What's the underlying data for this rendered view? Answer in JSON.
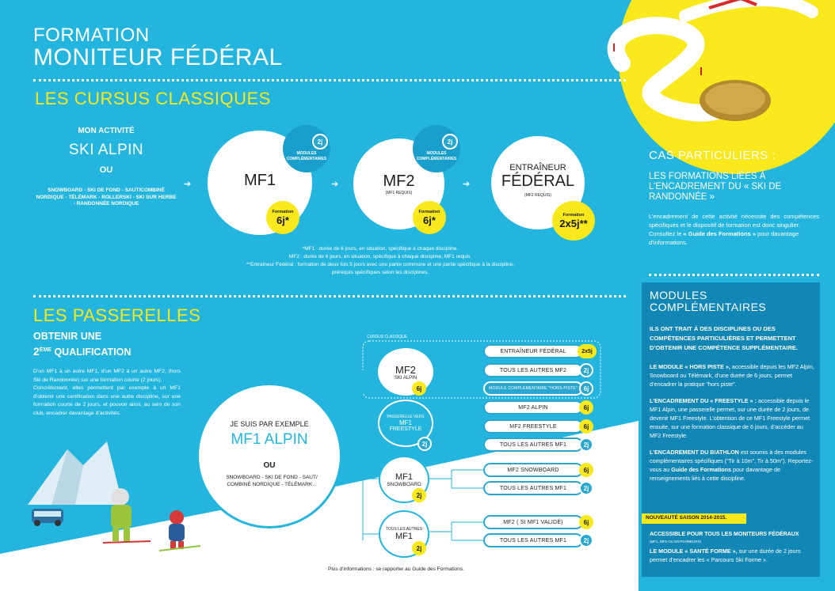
{
  "header": {
    "title_line1": "FORMATION",
    "title_line2": "MONITEUR FÉDÉRAL"
  },
  "cursus": {
    "heading": "LES CURSUS CLASSIQUES",
    "activity_label": "MON ACTIVITÉ",
    "activity": "SKI ALPIN",
    "ou": "OU",
    "others": "SNOWBOARD - SKI DE FOND - SAUT/COMBINÉ NORDIQUE - TÉLÉMARK - ROLLERSKI - SKI SUR HERBE - RANDONNÉE NORDIQUE",
    "arrow": "➔",
    "mf1": {
      "title": "MF1",
      "modules_badge": "2j",
      "modules_label": "MODULES COMPLÉMENTAIRES",
      "formation_label": "Formation",
      "formation_value": "6j*"
    },
    "mf2": {
      "title": "MF2",
      "sub": "(MF1 REQUIS)",
      "modules_badge": "2j",
      "modules_label": "MODULES COMPLÉMENTAIRES",
      "formation_label": "Formation",
      "formation_value": "6j*"
    },
    "ef": {
      "title_small": "ENTRAÎNEUR",
      "title": "FÉDÉRAL",
      "sub": "(MF2 REQUIS)",
      "formation_label": "Formation",
      "formation_value": "2x5j**"
    },
    "notes": [
      "*MF1 : durée de 6 jours, en situation, spécifique à chaque discipline.",
      "MF2 : durée de 6 jours, en situation, spécifique à chaque discipline, MF1 requis.",
      "**Entraîneur Fédéral : formation de deux fois 5 jours avec une partie commune et une partie spécifique à la discipline,",
      "prérequis spécifiques selon les disciplines."
    ]
  },
  "particuliers": {
    "heading": "CAS PARTICULIERS :",
    "subheading": "LES FORMATIONS LIÉES À L’ENCADREMENT DU « SKI DE RANDONNÉE »",
    "text1": "L’encadrement de cette activité nécessite des compétences spécifiques et le dispositif de formation est donc singulier.",
    "text2_pre": "Consultez le ",
    "text2_bold": "« Guide des Formations »",
    "text2_post": " pour davantage d’informations."
  },
  "modules": {
    "heading_line1": "MODULES",
    "heading_line2": "COMPLÉMENTAIRES",
    "intro": "ILS ONT TRAIT À DES DISCIPLINES OU DES COMPÉTENCES PARTICULIÈRES ET PERMETTENT D’OBTENIR UNE COMPÉTENCE SUPPLÉMENTAIRE.",
    "p1_bold": "LE MODULE « HORS PISTE »,",
    "p1_text": " accessible depuis les MF2 Alpin, Snowboard ou Télémark, d’une durée de  6 jours, permet d’encadrer la pratique “hors piste”.",
    "p2_bold": "L’ENCADREMENT DU « FREESTYLE » :",
    "p2_text": " accessible depuis le MF1 Alpin, une passerelle permet, sur une durée de 2 jours, de devenir MF1 Freestyle. L’obtention de ce MF1 Freestyle permet ensuite, sur une formation classique de 6 jours, d’accéder au MF2 Freestyle.",
    "p3_bold": "L’ENCADREMENT DU BIATHLON",
    "p3_text": " est soumis à des modules complémentaires spécifiques (“Tir à 10m”, Tir à 50m”). Reportez-vous au ",
    "p3_bold2": "Guide des Formations",
    "p3_text2": " pour davantage de renseignements liés à cette discipline.",
    "nouveaute": "NOUVEAUTÉ SAISON 2014-2015.",
    "accessible": "ACCESSIBLE POUR TOUS LES MONITEURS FÉDÉRAUX",
    "accessible_sub": "(MF1, MF2 OU ENTRAÎNEURS)",
    "p4_bold": "LE MODULE « SANTÉ FORME »,",
    "p4_text": " sur une durée de 2 jours permet d’encadrer les « Parcours Ski Forme »."
  },
  "passerelles": {
    "heading": "LES PASSERELLES",
    "sub_line1": "OBTENIR UNE",
    "sub_num": "2",
    "sub_sup": "ÈME",
    "sub_line2": " QUALIFICATION",
    "text1": "D’un MF1 à un autre MF1, d’un MF2 à un autre MF2, (hors Ski de Randonnée) sur une formation courte (2 jours).",
    "text2": "Concrètement, elles permettent par exemple à un MF1 d’obtenir une certification dans une autre discipline, sur une formation courte de 2 jours, et pouvoir ainsi, au sein de son club, encadrer davantage d’activités.",
    "example_label": "JE SUIS PAR EXEMPLE",
    "example": "MF1 ALPIN",
    "ou": "OU",
    "example_others": "SNOWBOARD - SKI DE FOND - SAUT/ COMBINÉ NORDIQUE - TÉLÉMARK...",
    "cursus_label": "CURSUS CLASSIQUE",
    "mf2_node": {
      "title": "MF2",
      "sub": "SKI ALPIN",
      "badge": "6j"
    },
    "freestyle_node": {
      "pre": "PASSERELLE VERS",
      "title": "MF1",
      "sub": "FREESTYLE",
      "badge": "2j"
    },
    "snowboard_node": {
      "title": "MF1",
      "sub": "SNOWBOARD",
      "badge": "2j"
    },
    "autres_node": {
      "pre": "TOUS LES AUTRES",
      "title": "MF1",
      "badge": "2j"
    },
    "pills": [
      {
        "label": "ENTRAÎNEUR FÉDÉRAL",
        "badge": "2x5j"
      },
      {
        "label": "TOUS LES AUTRES MF2",
        "badge": "2j"
      },
      {
        "label": "MODULE COMPLÉMENTAIRE \"HORS-PISTE\"",
        "badge": "6j"
      },
      {
        "label": "MF2 ALPIN",
        "badge": "6j"
      },
      {
        "label": "MF2 FREESTYLE",
        "badge": "6j"
      },
      {
        "label": "TOUS LES AUTRES MF1",
        "badge": "2j"
      },
      {
        "label": "MF2 SNOWBOARD",
        "badge": "6j"
      },
      {
        "label": "TOUS LES AUTRES MF1",
        "badge": "2j"
      },
      {
        "label": "MF2 ( SI MF1 VALIDÉ)",
        "badge": "6j"
      },
      {
        "label": "TOUS LES AUTRES MF1",
        "badge": "2j"
      }
    ]
  },
  "footer": "Plus d’informations : se rapporter au Guide des Formations.",
  "colors": {
    "background": "#23b5dd",
    "accent_yellow": "#f8e81c",
    "accent_blue": "#2aa7cf",
    "dark_blue": "#1287b5"
  },
  "icons": [
    "arrow-right-icon",
    "ski-track-illustration-icon",
    "gold-medal-icon",
    "mountain-illustration-icon",
    "skier-illustration-icon",
    "van-illustration-icon"
  ]
}
